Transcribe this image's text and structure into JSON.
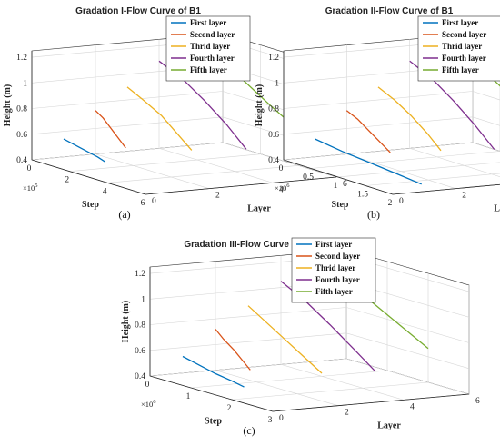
{
  "chart_data": [
    {
      "type": "line",
      "panel": "(a)",
      "title": "Gradation I-Flow Curve of B1",
      "xlabel": "Step",
      "ylabel": "Layer",
      "zlabel": "Height (m)",
      "x_ticks": [
        "0",
        "2",
        "4",
        "6"
      ],
      "x_exponent": "×10",
      "x_exponent_power": "5",
      "y_ticks": [
        "0",
        "2",
        "4",
        "6"
      ],
      "z_ticks": [
        "0.4",
        "0.6",
        "0.8",
        "1",
        "1.2"
      ],
      "xlim": [
        0,
        6
      ],
      "ylim": [
        0,
        6
      ],
      "zlim": [
        0.4,
        1.25
      ],
      "legend_position": "top-right",
      "series": [
        {
          "name": "First layer",
          "color": "#0072BD",
          "layer": 1,
          "step": [
            0,
            0.6,
            1.2,
            1.8,
            2.2
          ],
          "height": [
            0.54,
            0.52,
            0.5,
            0.48,
            0.46
          ]
        },
        {
          "name": "Second layer",
          "color": "#D95319",
          "layer": 2,
          "step": [
            0,
            0.4,
            0.8,
            1.2,
            1.6
          ],
          "height": [
            0.74,
            0.7,
            0.64,
            0.58,
            0.52
          ]
        },
        {
          "name": "Thrid layer",
          "color": "#EDB120",
          "layer": 3,
          "step": [
            0,
            0.8,
            1.8,
            2.6,
            3.4
          ],
          "height": [
            0.9,
            0.84,
            0.76,
            0.66,
            0.56
          ]
        },
        {
          "name": "Fourth layer",
          "color": "#7E2F8E",
          "layer": 4,
          "step": [
            0,
            1.2,
            2.4,
            3.6,
            4.6
          ],
          "height": [
            1.08,
            1.0,
            0.88,
            0.74,
            0.6
          ]
        },
        {
          "name": "Fifth layer",
          "color": "#77AC30",
          "layer": 5,
          "step": [
            0,
            1.4,
            2.8,
            4.2,
            5.6
          ],
          "height": [
            1.24,
            1.15,
            1.03,
            0.9,
            0.78
          ]
        }
      ]
    },
    {
      "type": "line",
      "panel": "(b)",
      "title": "Gradation II-Flow Curve of B1",
      "xlabel": "Step",
      "ylabel": "Layer",
      "zlabel": "Height (m)",
      "x_ticks": [
        "0",
        "0.5",
        "1",
        "1.5",
        "2"
      ],
      "x_exponent": "×10",
      "x_exponent_power": "6",
      "y_ticks": [
        "0",
        "2",
        "4",
        "6"
      ],
      "z_ticks": [
        "0.4",
        "0.6",
        "0.8",
        "1",
        "1.2"
      ],
      "xlim": [
        0,
        2
      ],
      "ylim": [
        0,
        6
      ],
      "zlim": [
        0.4,
        1.25
      ],
      "legend_position": "top-right",
      "series": [
        {
          "name": "First layer",
          "color": "#0072BD",
          "layer": 1,
          "step": [
            0,
            0.5,
            1.0,
            1.5,
            1.95
          ],
          "height": [
            0.54,
            0.51,
            0.49,
            0.47,
            0.45
          ]
        },
        {
          "name": "Second layer",
          "color": "#D95319",
          "layer": 2,
          "step": [
            0,
            0.2,
            0.4,
            0.6,
            0.8
          ],
          "height": [
            0.74,
            0.7,
            0.64,
            0.58,
            0.52
          ]
        },
        {
          "name": "Thrid layer",
          "color": "#EDB120",
          "layer": 3,
          "step": [
            0,
            0.3,
            0.6,
            0.9,
            1.15
          ],
          "height": [
            0.9,
            0.84,
            0.76,
            0.66,
            0.56
          ]
        },
        {
          "name": "Fourth layer",
          "color": "#7E2F8E",
          "layer": 4,
          "step": [
            0,
            0.4,
            0.8,
            1.2,
            1.55
          ],
          "height": [
            1.08,
            1.0,
            0.88,
            0.74,
            0.6
          ]
        },
        {
          "name": "Fifth layer",
          "color": "#77AC30",
          "layer": 5,
          "step": [
            0,
            0.5,
            1.0,
            1.5,
            1.95
          ],
          "height": [
            1.24,
            1.15,
            1.03,
            0.9,
            0.78
          ]
        }
      ]
    },
    {
      "type": "line",
      "panel": "(c)",
      "title": "Gradation III-Flow Curve of B1",
      "xlabel": "Step",
      "ylabel": "Layer",
      "zlabel": "Height (m)",
      "x_ticks": [
        "0",
        "1",
        "2",
        "3"
      ],
      "x_exponent": "×10",
      "x_exponent_power": "6",
      "y_ticks": [
        "0",
        "2",
        "4",
        "6"
      ],
      "z_ticks": [
        "0.4",
        "0.6",
        "0.8",
        "1",
        "1.2"
      ],
      "xlim": [
        0,
        3
      ],
      "ylim": [
        0,
        6
      ],
      "zlim": [
        0.4,
        1.25
      ],
      "legend_position": "top-right",
      "series": [
        {
          "name": "First layer",
          "color": "#0072BD",
          "layer": 1,
          "step": [
            0,
            0.4,
            0.8,
            1.2,
            1.5
          ],
          "height": [
            0.53,
            0.5,
            0.47,
            0.45,
            0.43
          ]
        },
        {
          "name": "Second layer",
          "color": "#D95319",
          "layer": 2,
          "step": [
            0,
            0.2,
            0.45,
            0.65,
            0.85
          ],
          "height": [
            0.72,
            0.66,
            0.6,
            0.54,
            0.48
          ]
        },
        {
          "name": "Thrid layer",
          "color": "#EDB120",
          "layer": 3,
          "step": [
            0,
            0.4,
            0.9,
            1.4,
            1.8
          ],
          "height": [
            0.88,
            0.8,
            0.7,
            0.6,
            0.52
          ]
        },
        {
          "name": "Fourth layer",
          "color": "#7E2F8E",
          "layer": 4,
          "step": [
            0,
            0.6,
            1.2,
            1.8,
            2.3
          ],
          "height": [
            1.05,
            0.95,
            0.82,
            0.68,
            0.56
          ]
        },
        {
          "name": "Fifth layer",
          "color": "#77AC30",
          "layer": 5,
          "step": [
            0,
            0.7,
            1.4,
            2.1,
            2.8
          ],
          "height": [
            1.22,
            1.12,
            1.0,
            0.88,
            0.76
          ]
        }
      ]
    }
  ]
}
